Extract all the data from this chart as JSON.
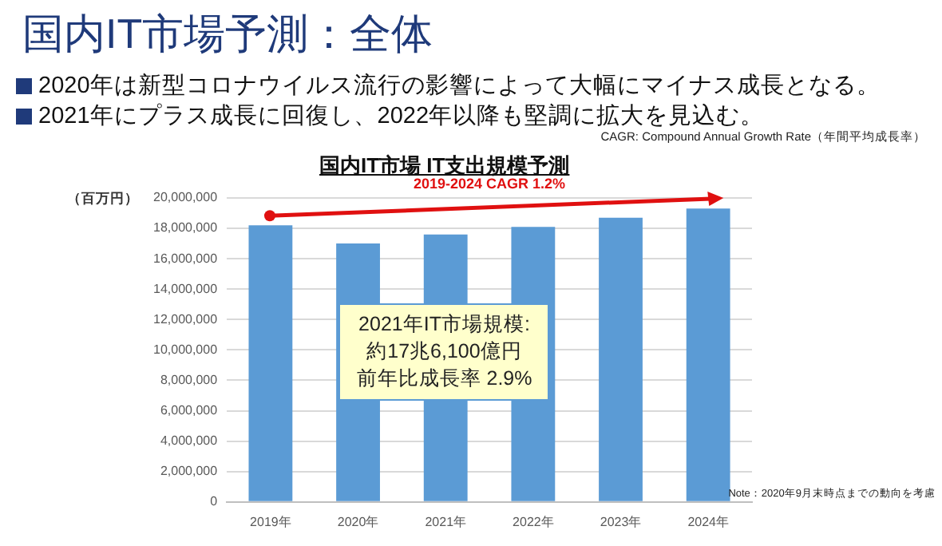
{
  "chart_data": {
    "type": "bar",
    "title": "国内IT市場予測：全体",
    "subtitle": "国内IT市場 IT支出規模予測",
    "ylabel": "（百万円）",
    "categories": [
      "2019年",
      "2020年",
      "2021年",
      "2022年",
      "2023年",
      "2024年"
    ],
    "values": [
      18200000,
      17000000,
      17600000,
      18100000,
      18700000,
      19300000
    ],
    "color": "#5b9bd5",
    "ylim": [
      0,
      20000000
    ],
    "yticks": [
      0,
      {
        "value": 2000000,
        "label": "2,000,000"
      },
      {
        "value": 4000000,
        "label": "4,000,000"
      },
      {
        "value": 6000000,
        "label": "6,000,000"
      },
      {
        "value": 8000000,
        "label": "8,000,000"
      },
      {
        "value": 10000000,
        "label": "10,000,000"
      },
      {
        "value": 12000000,
        "label": "12,000,000"
      },
      {
        "value": 14000000,
        "label": "14,000,000"
      },
      {
        "value": 16000000,
        "label": "16,000,000"
      },
      {
        "value": 18000000,
        "label": "18,000,000"
      },
      {
        "value": 20000000,
        "label": "20,000,000"
      }
    ],
    "grid": "y",
    "legend": false,
    "annotations": [
      "2020年は新型コロナウイルス流行の影響によって大幅にマイナス成長となる。",
      "2021年にプラス成長に回復し、2022年以降も堅調に拡大を見込む。",
      "CAGR: Compound Annual Growth Rate（年間平均成長率）",
      "2019-2024 CAGR 1.2%",
      "2021年IT市場規模:",
      "約17兆6,100億円",
      "前年比成長率 2.9%",
      "Note：2020年9月末時点までの動向を考慮"
    ]
  }
}
